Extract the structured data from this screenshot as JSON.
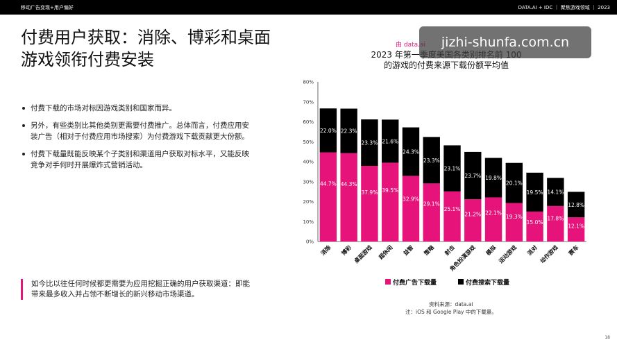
{
  "header": {
    "left": "移动广告变现+用户偏好",
    "right": "DATA.AI + IDC ｜ 聚焦游戏领域 ｜ 2023"
  },
  "slide": {
    "title": "付费用户获取：消除、博彩和桌面游戏领衔付费安装",
    "bullets": [
      "付费下载的市场对标因游戏类别和国家而异。",
      "另外，有些类别比其他类别更需要付费推广。总体而言，付费应用安装广告（相对于付费应用市场搜索）为付费游戏下载贡献更大份额。",
      "付费下载量既能反映某个子类别和渠道用户获取对标水平，又能反映竞争对手何时开展爆炸式营销活动。"
    ],
    "callout": "如今比以往任何时候都更需要为应用挖掘正确的用户获取渠道：即能带来最多收入并占领不断增长的新兴移动市场渠道。",
    "page_number": "18"
  },
  "watermark": "jizhi-shunfa.com.cn",
  "chart_data": {
    "type": "bar",
    "stacked": true,
    "from_label": "由 data.ai",
    "title": "2023 年第一季度美国各类别排名前 100 的游戏的付费来源下载份额平均值",
    "categories": [
      "消除",
      "博彩",
      "桌面游戏",
      "超休闲",
      "益智",
      "策略",
      "射击",
      "角色扮演游戏",
      "模拟",
      "运动游戏",
      "派对",
      "动作游戏",
      "赛车"
    ],
    "series": [
      {
        "name": "付费广告下载量",
        "color": "#e6147a",
        "values": [
          44.7,
          44.3,
          37.9,
          39.5,
          32.9,
          29.1,
          25.1,
          21.2,
          22.1,
          19.3,
          15.0,
          17.8,
          12.1
        ],
        "labels": [
          "44.7%",
          "44.3%",
          "37.9%",
          "39.5%",
          "32.9%",
          "29.1%",
          "25.1%",
          "21.2%",
          "22.1%",
          "19.3%",
          "15.0%",
          "17.8%",
          "12.1%"
        ]
      },
      {
        "name": "付费搜索下载量",
        "color": "#000000",
        "values": [
          22.0,
          22.3,
          23.3,
          21.6,
          24.3,
          23.3,
          23.1,
          23.7,
          19.8,
          20.1,
          19.5,
          14.1,
          12.8
        ],
        "labels": [
          "22.0%",
          "22.3%",
          "23.3%",
          "21.6%",
          "24.3%",
          "23.3%",
          "23.1%",
          "23.7%",
          "19.8%",
          "20.1%",
          "19.5%",
          "14.1%",
          "12.8%"
        ]
      }
    ],
    "ylim": [
      0,
      80
    ],
    "yticks": [
      0,
      10,
      20,
      30,
      40,
      50,
      60,
      70,
      80
    ],
    "ytick_labels": [
      "0%",
      "10%",
      "20%",
      "30%",
      "40%",
      "50%",
      "60%",
      "70%",
      "80%"
    ],
    "grid": false,
    "legend": "bottom",
    "source_lines": [
      "资料来源：data.ai",
      "注：iOS 和 Google Play 中的下载量。"
    ]
  }
}
